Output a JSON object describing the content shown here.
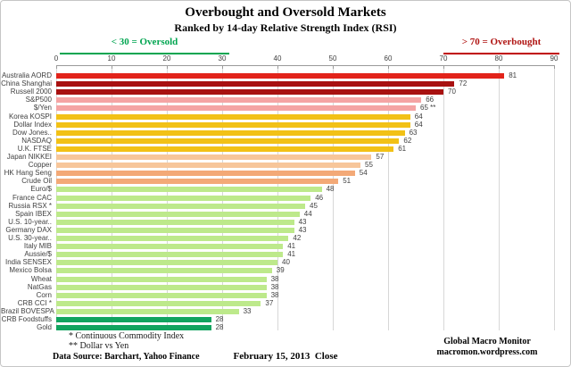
{
  "title": "Overbought and Oversold Markets",
  "subtitle": "Ranked by 14-day Relative Strength Index (RSI)",
  "annotations": {
    "oversold": "< 30 = Oversold",
    "overbought": "> 70 = Overbought"
  },
  "footnotes": [
    "* Continuous Commodity Index",
    "** Dollar vs Yen"
  ],
  "footer": {
    "data_source": "Data Source: Barchart, Yahoo Finance",
    "date": "February 15, 2013  Close",
    "brand_line1": "Global Macro Monitor",
    "brand_line2": "macromon.wordpress.com"
  },
  "colors": {
    "oversold_accent": "#00a550",
    "overbought_accent": "#c00000",
    "strong_red": "#e2231a",
    "dark_red": "#a81110",
    "pink": "#f4a4a4",
    "gold": "#f2c116",
    "light_peach": "#f7c69a",
    "peach": "#f3a977",
    "light_green": "#bde98b",
    "dark_green": "#12a45f",
    "gridline": "#d7d7d7"
  },
  "chart_data": {
    "type": "bar",
    "orientation": "horizontal",
    "title": "Overbought and Oversold Markets",
    "subtitle": "Ranked by 14-day Relative Strength Index (RSI)",
    "xlim": [
      0,
      90
    ],
    "ticks": [
      0,
      10,
      20,
      30,
      40,
      50,
      60,
      70,
      80,
      90
    ],
    "grid": true,
    "thresholds": {
      "oversold": 30,
      "overbought": 70
    },
    "bars": [
      {
        "label": "Australia AORD",
        "value": 81,
        "color": "#e2231a"
      },
      {
        "label": "China Shanghai",
        "value": 72,
        "color": "#a81110"
      },
      {
        "label": "Russell 2000",
        "value": 70,
        "color": "#a81110"
      },
      {
        "label": "S&P500",
        "value": 66,
        "color": "#f4a4a4"
      },
      {
        "label": "$/Yen",
        "value": 65,
        "display": "65 **",
        "color": "#f4a4a4"
      },
      {
        "label": "Korea KOSPI",
        "value": 64,
        "color": "#f2c116"
      },
      {
        "label": "Dollar Index",
        "value": 64,
        "color": "#f2c116"
      },
      {
        "label": "Dow Jones..",
        "value": 63,
        "color": "#f2c116"
      },
      {
        "label": "NASDAQ",
        "value": 62,
        "color": "#f2c116"
      },
      {
        "label": "U.K. FTSE",
        "value": 61,
        "color": "#f2c116"
      },
      {
        "label": "Japan NIKKEI",
        "value": 57,
        "color": "#f7c69a"
      },
      {
        "label": "Copper",
        "value": 55,
        "color": "#f7c69a"
      },
      {
        "label": "HK Hang Seng",
        "value": 54,
        "color": "#f3a977"
      },
      {
        "label": "Crude Oil",
        "value": 51,
        "color": "#f3a977"
      },
      {
        "label": "Euro/$",
        "value": 48,
        "color": "#bde98b"
      },
      {
        "label": "France CAC",
        "value": 46,
        "color": "#bde98b"
      },
      {
        "label": "Russia RSX *",
        "value": 45,
        "color": "#bde98b"
      },
      {
        "label": "Spain IBEX",
        "value": 44,
        "color": "#bde98b"
      },
      {
        "label": "U.S. 10-year..",
        "value": 43,
        "color": "#bde98b"
      },
      {
        "label": "Germany DAX",
        "value": 43,
        "color": "#bde98b"
      },
      {
        "label": "U.S. 30-year..",
        "value": 42,
        "color": "#bde98b"
      },
      {
        "label": "Italy MIB",
        "value": 41,
        "color": "#bde98b"
      },
      {
        "label": "Aussie/$",
        "value": 41,
        "color": "#bde98b"
      },
      {
        "label": "India SENSEX",
        "value": 40,
        "color": "#bde98b"
      },
      {
        "label": "Mexico Bolsa",
        "value": 39,
        "color": "#bde98b"
      },
      {
        "label": "Wheat",
        "value": 38,
        "color": "#bde98b"
      },
      {
        "label": "NatGas",
        "value": 38,
        "color": "#bde98b"
      },
      {
        "label": "Corn",
        "value": 38,
        "color": "#bde98b"
      },
      {
        "label": "CRB CCI *",
        "value": 37,
        "color": "#bde98b"
      },
      {
        "label": "Brazil BOVESPA",
        "value": 33,
        "color": "#bde98b"
      },
      {
        "label": "CRB Foodstuffs",
        "value": 28,
        "color": "#12a45f"
      },
      {
        "label": "Gold",
        "value": 28,
        "color": "#12a45f"
      }
    ]
  }
}
